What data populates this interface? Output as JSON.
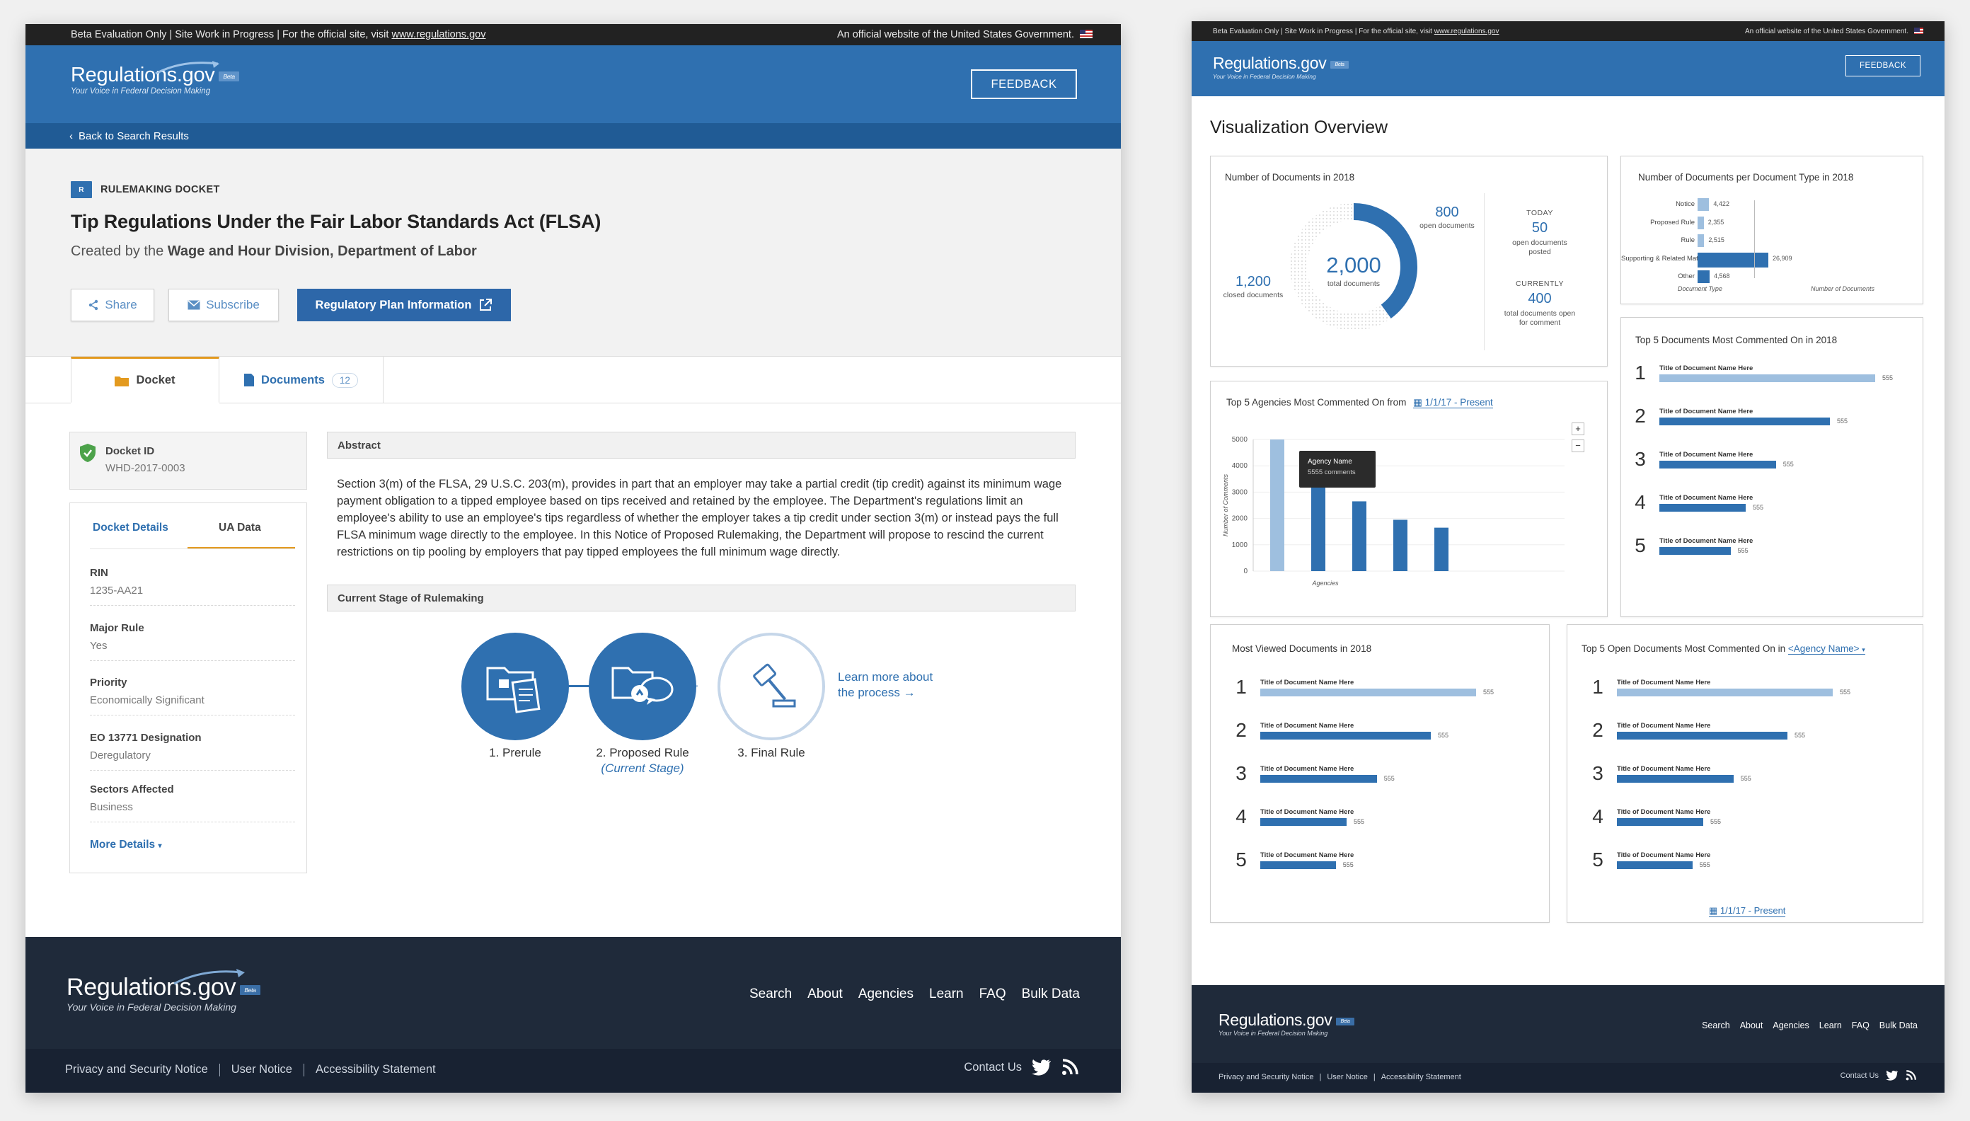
{
  "left": {
    "gov_banner": {
      "left": "Beta Evaluation Only | Site Work in Progress | For the official site, visit ",
      "link": "www.regulations.gov",
      "right": "An official website of the United States Government."
    },
    "header": {
      "logo": "Regulations.gov",
      "beta": "Beta",
      "tagline": "Your Voice in Federal Decision Making",
      "feedback": "FEEDBACK"
    },
    "back": "Back to Search Results",
    "docket": {
      "type_badge": "R",
      "type": "RULEMAKING DOCKET",
      "title": "Tip Regulations Under the Fair Labor Standards Act (FLSA)",
      "created_prefix": "Created by the ",
      "created_by": "Wage and Hour Division, Department of Labor",
      "share": "Share",
      "subscribe": "Subscribe",
      "reg_plan": "Regulatory Plan Information"
    },
    "tabs": [
      {
        "label": "Docket"
      },
      {
        "label": "Documents",
        "count": "12"
      }
    ],
    "docket_id": {
      "label": "Docket ID",
      "value": "WHD-2017-0003"
    },
    "details_tabs": [
      "Docket Details",
      "UA Data"
    ],
    "details": [
      {
        "label": "RIN",
        "value": "1235-AA21"
      },
      {
        "label": "Major Rule",
        "value": "Yes"
      },
      {
        "label": "Priority",
        "value": "Economically Significant"
      },
      {
        "label": "EO 13771 Designation",
        "value": "Deregulatory"
      },
      {
        "label": "Sectors Affected",
        "value": "Business"
      }
    ],
    "more_details": "More Details",
    "abstract_heading": "Abstract",
    "abstract_text": "Section 3(m) of the FLSA, 29 U.S.C. 203(m), provides in part that an employer may take a partial credit (tip credit) against its minimum wage payment obligation to a tipped employee based on tips received and retained by the employee.  The Department's regulations limit an employee's ability to use an employee's tips regardless of whether the employer takes a tip credit under section 3(m) or instead pays the full FLSA minimum wage directly to the employee. In this Notice of Proposed Rulemaking, the Department will propose to rescind the current restrictions on tip pooling by employers that pay tipped employees the full minimum wage directly.",
    "stage_heading": "Current Stage of Rulemaking",
    "stages": [
      {
        "label": "1. Prerule"
      },
      {
        "label": "2. Proposed Rule",
        "note": "(Current Stage)"
      },
      {
        "label": "3. Final Rule"
      }
    ],
    "learn_more": "Learn more about the process →",
    "footer": {
      "logo": "Regulations.gov",
      "beta": "Beta",
      "tagline": "Your Voice in Federal Decision Making",
      "nav": [
        "Search",
        "About",
        "Agencies",
        "Learn",
        "FAQ",
        "Bulk Data"
      ],
      "links": [
        "Privacy and Security Notice",
        "User Notice",
        "Accessibility Statement"
      ],
      "contact": "Contact Us"
    }
  },
  "right": {
    "gov_banner": {
      "left": "Beta Evaluation Only | Site Work in Progress | For the official site, visit ",
      "link": "www.regulations.gov",
      "right": "An official website of the United States Government."
    },
    "header": {
      "logo": "Regulations.gov",
      "beta": "Beta",
      "tagline": "Your Voice in Federal Decision Making",
      "feedback": "FEEDBACK"
    },
    "title": "Visualization Overview",
    "donut": {
      "title": "Number of Documents in 2018",
      "total": "2,000",
      "total_label": "total documents",
      "open": "800",
      "open_label": "open documents",
      "closed": "1,200",
      "closed_label": "closed documents",
      "today_label": "TODAY",
      "today_value": "50",
      "today_sub": "open documents posted",
      "currently_label": "CURRENTLY",
      "currently_value": "400",
      "currently_sub": "total documents open for comment"
    },
    "doctype": {
      "title": "Number of Documents per Document Type in 2018",
      "xlabel_left": "Document Type",
      "xlabel_right": "Number of Documents",
      "rows": [
        {
          "label": "Notice",
          "value": 4422,
          "text": "4,422"
        },
        {
          "label": "Proposed Rule",
          "value": 2355,
          "text": "2,355"
        },
        {
          "label": "Rule",
          "value": 2515,
          "text": "2,515"
        },
        {
          "label": "Supporting & Related Material",
          "value": 26909,
          "text": "26,909"
        },
        {
          "label": "Other",
          "value": 4568,
          "text": "4,568"
        }
      ]
    },
    "agencies": {
      "title": "Top 5 Agencies Most Commented On from",
      "date_range": "1/1/17 - Present",
      "ylabel": "Number of Comments",
      "xlabel": "Agencies",
      "yticks": [
        "0",
        "1000",
        "2000",
        "3000",
        "4000",
        "5000"
      ],
      "tooltip_name": "Agency Name",
      "tooltip_value": "5555 comments",
      "zoom_in": "+",
      "zoom_out": "−"
    },
    "chart_data": {
      "type": "bar",
      "title": "Top 5 Agencies Most Commented On from",
      "xlabel": "Agencies",
      "ylabel": "Number of Comments",
      "ylim": [
        0,
        5000
      ],
      "values": [
        5000,
        3900,
        2650,
        1950,
        1650
      ]
    },
    "top_commented": {
      "title": "Top 5 Documents Most Commented On in 2018",
      "items": [
        {
          "rank": "1",
          "name": "Title of Document Name Here",
          "value": "555",
          "fraction": 1.0
        },
        {
          "rank": "2",
          "name": "Title of Document Name Here",
          "value": "555",
          "fraction": 0.79
        },
        {
          "rank": "3",
          "name": "Title of Document Name Here",
          "value": "555",
          "fraction": 0.54
        },
        {
          "rank": "4",
          "name": "Title of Document Name Here",
          "value": "555",
          "fraction": 0.4
        },
        {
          "rank": "5",
          "name": "Title of Document Name Here",
          "value": "555",
          "fraction": 0.33
        }
      ]
    },
    "most_viewed": {
      "title": "Most Viewed Documents in 2018",
      "items": [
        {
          "rank": "1",
          "name": "Title of Document Name Here",
          "value": "555",
          "fraction": 1.0
        },
        {
          "rank": "2",
          "name": "Title of Document Name Here",
          "value": "555",
          "fraction": 0.79
        },
        {
          "rank": "3",
          "name": "Title of Document Name Here",
          "value": "555",
          "fraction": 0.54
        },
        {
          "rank": "4",
          "name": "Title of Document Name Here",
          "value": "555",
          "fraction": 0.4
        },
        {
          "rank": "5",
          "name": "Title of Document Name Here",
          "value": "555",
          "fraction": 0.35
        }
      ]
    },
    "top_open": {
      "title": "Top 5 Open Documents Most Commented On in",
      "agency_select": "<Agency Name>",
      "date_range": "1/1/17 - Present",
      "items": [
        {
          "rank": "1",
          "name": "Title of Document Name Here",
          "value": "555",
          "fraction": 1.0
        },
        {
          "rank": "2",
          "name": "Title of Document Name Here",
          "value": "555",
          "fraction": 0.79
        },
        {
          "rank": "3",
          "name": "Title of Document Name Here",
          "value": "555",
          "fraction": 0.54
        },
        {
          "rank": "4",
          "name": "Title of Document Name Here",
          "value": "555",
          "fraction": 0.4
        },
        {
          "rank": "5",
          "name": "Title of Document Name Here",
          "value": "555",
          "fraction": 0.35
        }
      ]
    },
    "footer": {
      "logo": "Regulations.gov",
      "beta": "Beta",
      "tagline": "Your Voice in Federal Decision Making",
      "nav": [
        "Search",
        "About",
        "Agencies",
        "Learn",
        "FAQ",
        "Bulk Data"
      ],
      "links": [
        "Privacy and Security Notice",
        "User Notice",
        "Accessibility Statement"
      ],
      "contact": "Contact Us"
    },
    "colors": {
      "primary": "#2f70b0",
      "light": "#9ebfdf",
      "navy": "#1f2a3a"
    }
  }
}
